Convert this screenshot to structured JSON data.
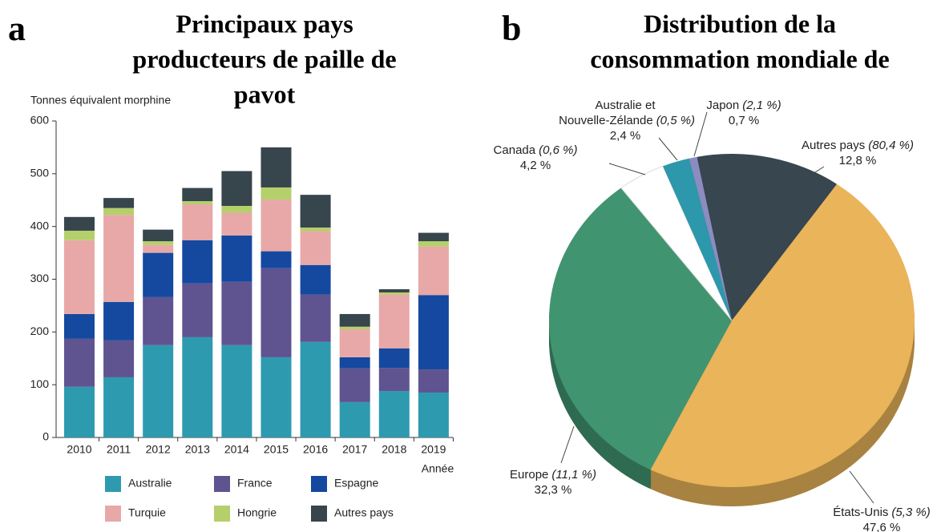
{
  "chart_data": [
    {
      "type": "bar",
      "stacked": true,
      "panel_label": "a",
      "title": [
        "Principaux pays",
        "producteurs de paille de",
        "pavot"
      ],
      "ylabel": "Tonnes équivalent morphine",
      "xlabel": "Année",
      "categories": [
        "2010",
        "2011",
        "2012",
        "2013",
        "2014",
        "2015",
        "2016",
        "2017",
        "2018",
        "2019"
      ],
      "series": [
        {
          "name": "Australie",
          "color": "#2e9aaf",
          "values": [
            96,
            114,
            175,
            190,
            175,
            152,
            181,
            67,
            88,
            85
          ]
        },
        {
          "name": "France",
          "color": "#5f5490",
          "values": [
            91,
            70,
            91,
            102,
            120,
            169,
            90,
            64,
            44,
            44
          ]
        },
        {
          "name": "Espagne",
          "color": "#1549a0",
          "values": [
            47,
            73,
            84,
            82,
            88,
            32,
            56,
            21,
            37,
            141
          ]
        },
        {
          "name": "Turquie",
          "color": "#e8a8a8",
          "values": [
            140,
            165,
            15,
            68,
            43,
            98,
            64,
            53,
            102,
            92
          ]
        },
        {
          "name": "Hongrie",
          "color": "#b5cf6b",
          "values": [
            18,
            13,
            7,
            6,
            13,
            23,
            7,
            5,
            4,
            10
          ]
        },
        {
          "name": "Autres pays",
          "color": "#37454d",
          "values": [
            26,
            19,
            22,
            25,
            66,
            76,
            62,
            24,
            6,
            16
          ]
        }
      ],
      "ylim": [
        0,
        600
      ],
      "yticks": [
        0,
        100,
        200,
        300,
        400,
        500,
        600
      ],
      "grid": false
    },
    {
      "type": "pie",
      "panel_label": "b",
      "title": [
        "Distribution de la",
        "consommation mondiale de"
      ],
      "categories": [
        "Autres pays",
        "États-Unis",
        "Europe",
        "Canada",
        "Australie et Nouvelle-Zélande",
        "Japon"
      ],
      "secondary_labels": [
        "(80,4 %)",
        "(5,3 %)",
        "(11,1 %)",
        "(0,6 %)",
        "(0,5 %)",
        "(2,1 %)"
      ],
      "values": [
        12.8,
        47.6,
        32.3,
        4.2,
        2.4,
        0.7
      ],
      "value_labels": [
        "12,8 %",
        "47,6 %",
        "32,3 %",
        "4,2 %",
        "2,4 %",
        "0,7 %"
      ],
      "colors": [
        "#37464f",
        "#e9b45a",
        "#419470",
        "#ffffff",
        "#2d97ab",
        "#8c8cc0"
      ]
    }
  ]
}
